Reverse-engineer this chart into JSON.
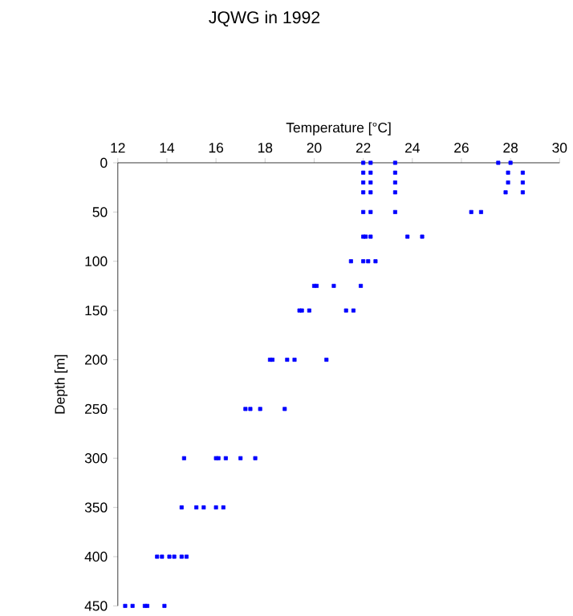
{
  "chart_data": {
    "type": "scatter",
    "title": "JQWG in 1992",
    "xlabel": "Temperature [°C]",
    "ylabel": "Depth [m]",
    "x": [
      22.0,
      22.3,
      23.3,
      27.5,
      28.0,
      22.0,
      22.3,
      23.3,
      27.9,
      28.5,
      22.0,
      22.3,
      23.3,
      27.9,
      28.5,
      22.0,
      22.3,
      23.3,
      27.8,
      28.5,
      22.0,
      22.3,
      23.3,
      26.4,
      26.8,
      22.0,
      22.1,
      22.3,
      23.8,
      24.4,
      21.5,
      22.0,
      22.2,
      22.5,
      20.0,
      20.1,
      20.8,
      21.9,
      19.4,
      19.5,
      19.8,
      21.3,
      21.6,
      18.2,
      18.3,
      18.9,
      19.2,
      20.5,
      17.2,
      17.4,
      17.8,
      18.8,
      14.7,
      16.0,
      16.1,
      16.4,
      17.0,
      17.6,
      14.6,
      15.2,
      15.5,
      16.0,
      16.3,
      13.6,
      13.8,
      14.1,
      14.3,
      14.6,
      14.8,
      12.3,
      12.6,
      13.1,
      13.2,
      13.9
    ],
    "values": [
      0,
      0,
      0,
      0,
      0,
      10,
      10,
      10,
      10,
      10,
      20,
      20,
      20,
      20,
      20,
      30,
      30,
      30,
      30,
      30,
      50,
      50,
      50,
      50,
      50,
      75,
      75,
      75,
      75,
      75,
      100,
      100,
      100,
      100,
      125,
      125,
      125,
      125,
      150,
      150,
      150,
      150,
      150,
      200,
      200,
      200,
      200,
      200,
      250,
      250,
      250,
      250,
      300,
      300,
      300,
      300,
      300,
      300,
      350,
      350,
      350,
      350,
      350,
      400,
      400,
      400,
      400,
      400,
      400,
      450,
      450,
      450,
      450,
      450
    ],
    "color": "#0000ff",
    "marker": "square",
    "xlim": [
      12,
      30
    ],
    "xticks": [
      12,
      14,
      16,
      18,
      20,
      22,
      24,
      26,
      28,
      30
    ],
    "ylim": [
      450,
      0
    ],
    "yticks": [
      0,
      50,
      100,
      150,
      200,
      250,
      300,
      350,
      400,
      450
    ]
  }
}
